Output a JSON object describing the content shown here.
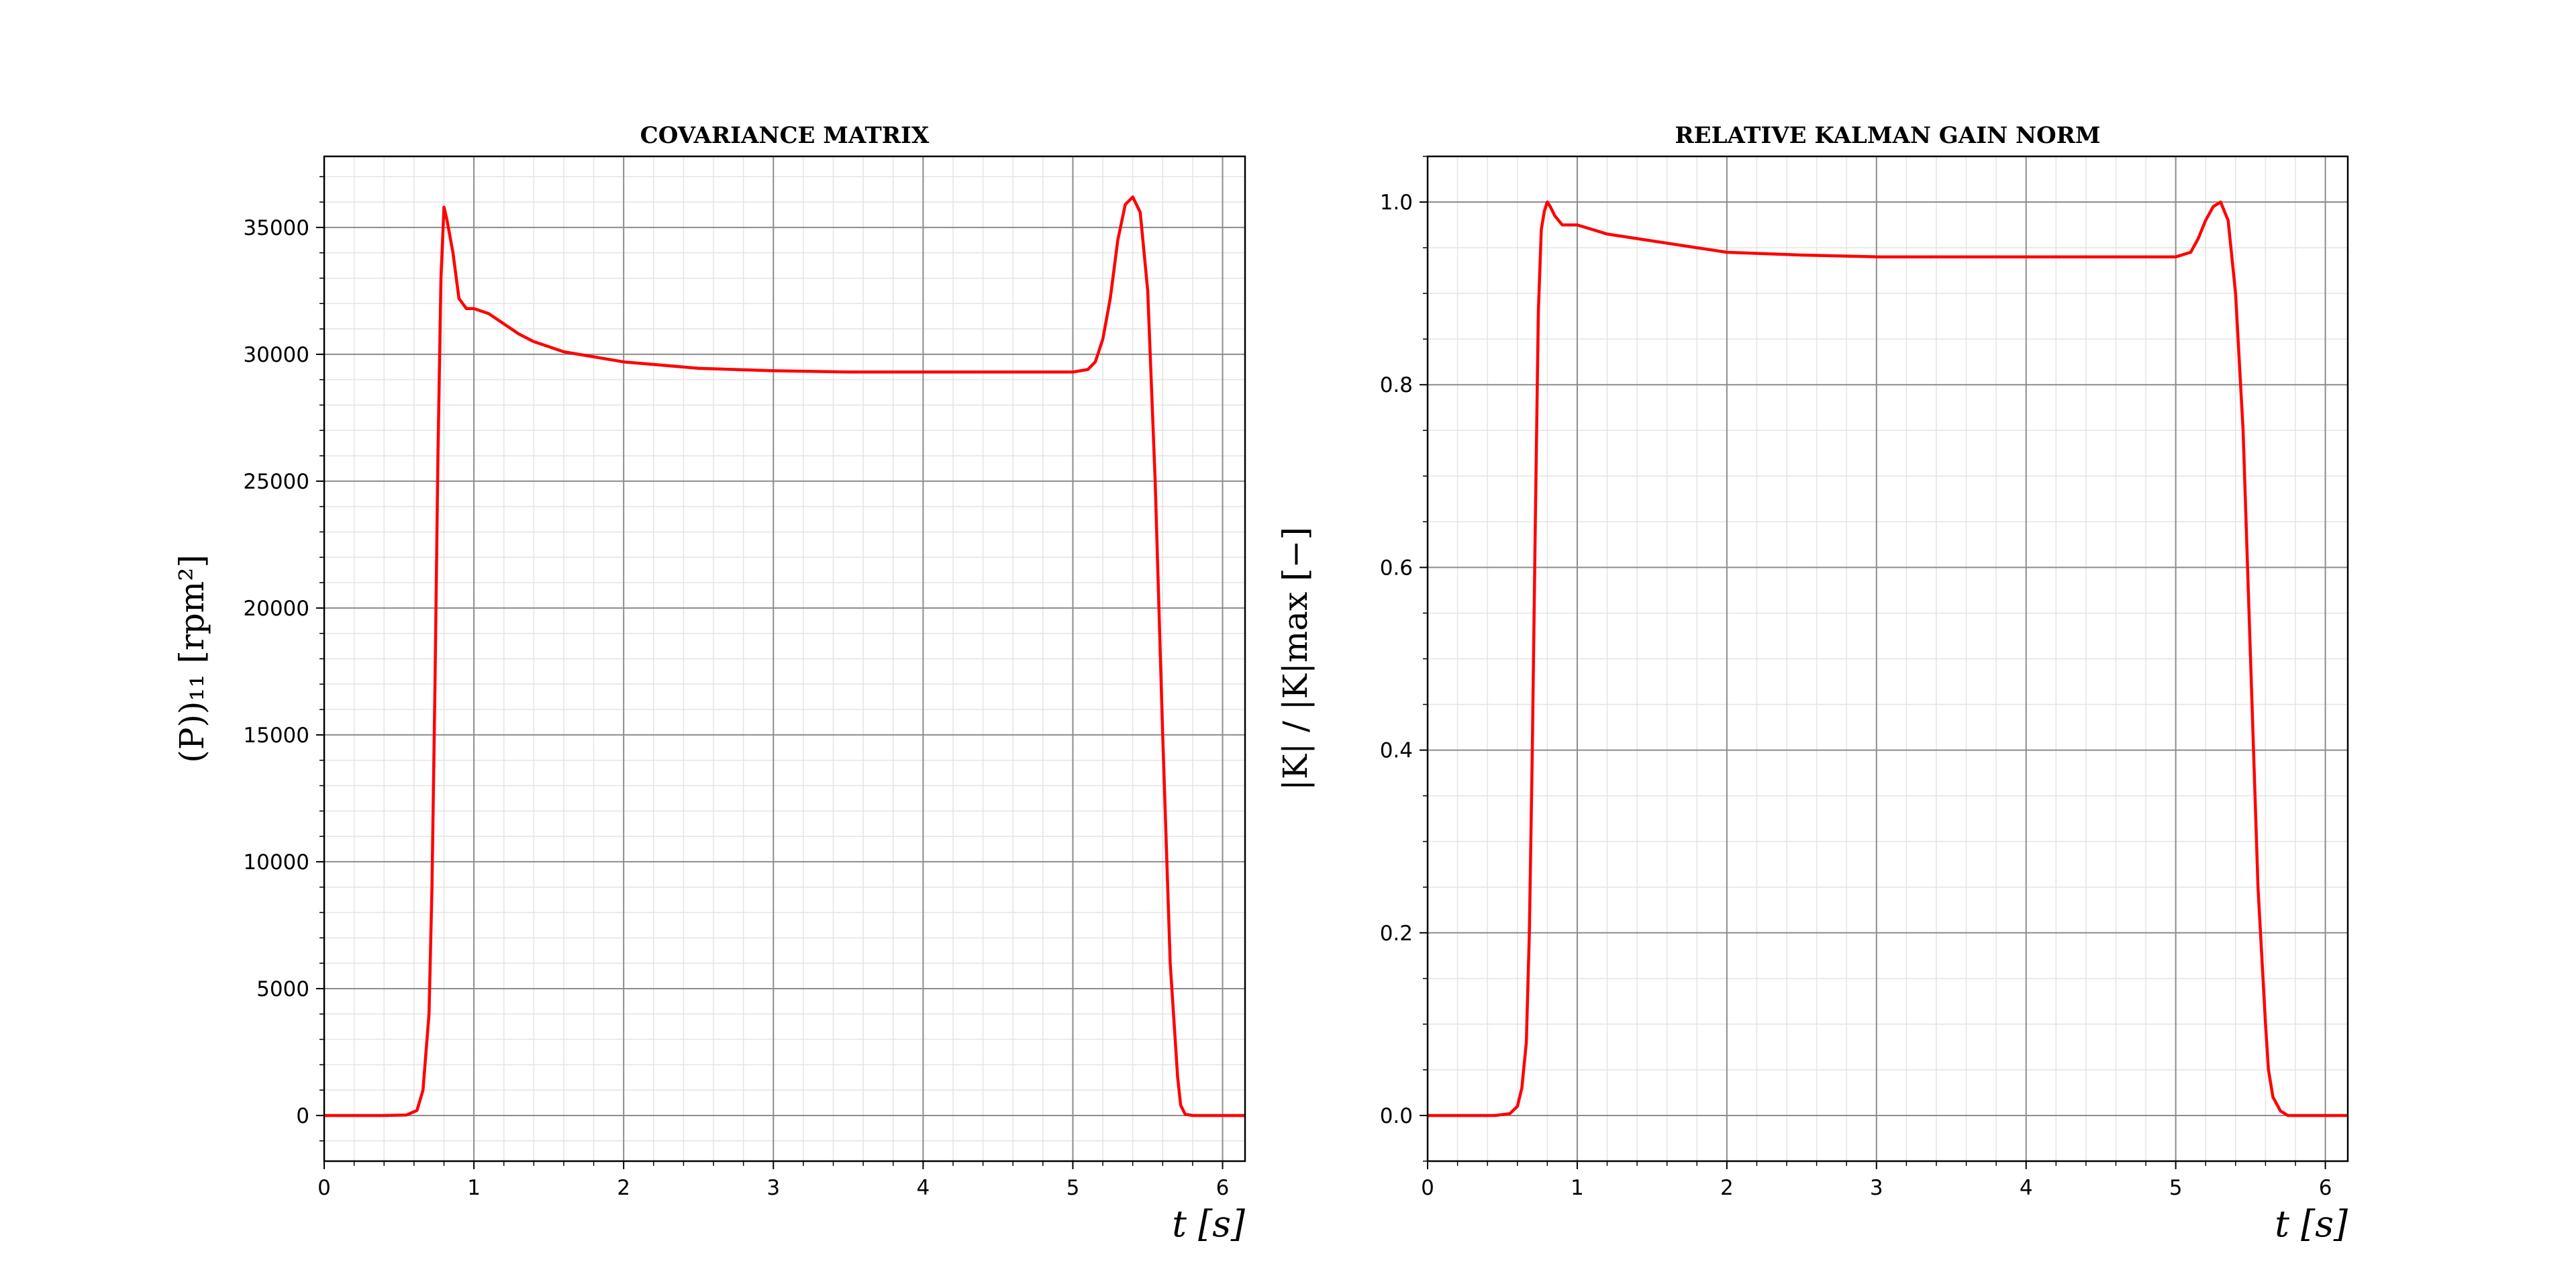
{
  "chart_data": [
    {
      "type": "line",
      "title": "COVARIANCE MATRIX",
      "xlabel": "t [s]",
      "ylabel": "(P))₁₁ [rpm²]",
      "xlim": [
        0,
        6.15
      ],
      "ylim": [
        -1800,
        37800
      ],
      "x_ticks": [
        "0",
        "1",
        "2",
        "3",
        "4",
        "5",
        "6"
      ],
      "y_ticks": [
        "0",
        "5000",
        "10000",
        "15000",
        "20000",
        "25000",
        "30000",
        "35000"
      ],
      "grid": true,
      "minor_grid": true,
      "line_color": "#ff0000",
      "series": [
        {
          "x": [
            0,
            0.4,
            0.55,
            0.62,
            0.66,
            0.7,
            0.72,
            0.74,
            0.76,
            0.78,
            0.8,
            0.82,
            0.86,
            0.9,
            0.95,
            1.0,
            1.1,
            1.2,
            1.3,
            1.4,
            1.5,
            1.6,
            1.8,
            2.0,
            2.2,
            2.5,
            3.0,
            3.5,
            4.0,
            4.5,
            5.0,
            5.1,
            5.15,
            5.2,
            5.25,
            5.3,
            5.35,
            5.4,
            5.45,
            5.5,
            5.55,
            5.6,
            5.65,
            5.7,
            5.72,
            5.75,
            5.8,
            5.9,
            6.15
          ],
          "y": [
            0,
            0,
            20,
            200,
            1000,
            4000,
            9000,
            17000,
            26000,
            33000,
            35800,
            35300,
            34000,
            32200,
            31800,
            31800,
            31600,
            31200,
            30800,
            30500,
            30300,
            30100,
            29900,
            29700,
            29600,
            29450,
            29350,
            29300,
            29300,
            29300,
            29300,
            29400,
            29700,
            30600,
            32200,
            34500,
            35900,
            36200,
            35600,
            32500,
            25000,
            15000,
            6000,
            1500,
            400,
            50,
            0,
            0,
            0
          ]
        }
      ]
    },
    {
      "type": "line",
      "title": "RELATIVE KALMAN GAIN NORM",
      "xlabel": "t [s]",
      "ylabel": "|K| / |K|max [−]",
      "xlim": [
        0,
        6.15
      ],
      "ylim": [
        -0.05,
        1.05
      ],
      "x_ticks": [
        "0",
        "1",
        "2",
        "3",
        "4",
        "5",
        "6"
      ],
      "y_ticks": [
        "0.0",
        "0.2",
        "0.4",
        "0.6",
        "0.8",
        "1.0"
      ],
      "grid": true,
      "minor_grid": true,
      "line_color": "#ff0000",
      "series": [
        {
          "x": [
            0,
            0.45,
            0.55,
            0.6,
            0.63,
            0.66,
            0.68,
            0.7,
            0.72,
            0.74,
            0.76,
            0.78,
            0.8,
            0.82,
            0.85,
            0.9,
            1.0,
            1.1,
            1.2,
            1.4,
            1.6,
            1.8,
            2.0,
            2.5,
            3.0,
            3.5,
            4.0,
            4.5,
            5.0,
            5.1,
            5.15,
            5.2,
            5.25,
            5.3,
            5.35,
            5.4,
            5.45,
            5.5,
            5.55,
            5.6,
            5.62,
            5.65,
            5.7,
            5.75,
            5.8,
            6.15
          ],
          "y": [
            0,
            0,
            0.002,
            0.01,
            0.03,
            0.08,
            0.2,
            0.4,
            0.65,
            0.88,
            0.97,
            0.99,
            1.0,
            0.995,
            0.985,
            0.975,
            0.975,
            0.97,
            0.965,
            0.96,
            0.955,
            0.95,
            0.945,
            0.942,
            0.94,
            0.94,
            0.94,
            0.94,
            0.94,
            0.945,
            0.96,
            0.98,
            0.995,
            1.0,
            0.98,
            0.9,
            0.75,
            0.5,
            0.25,
            0.1,
            0.05,
            0.02,
            0.005,
            0,
            0,
            0
          ]
        }
      ]
    }
  ]
}
